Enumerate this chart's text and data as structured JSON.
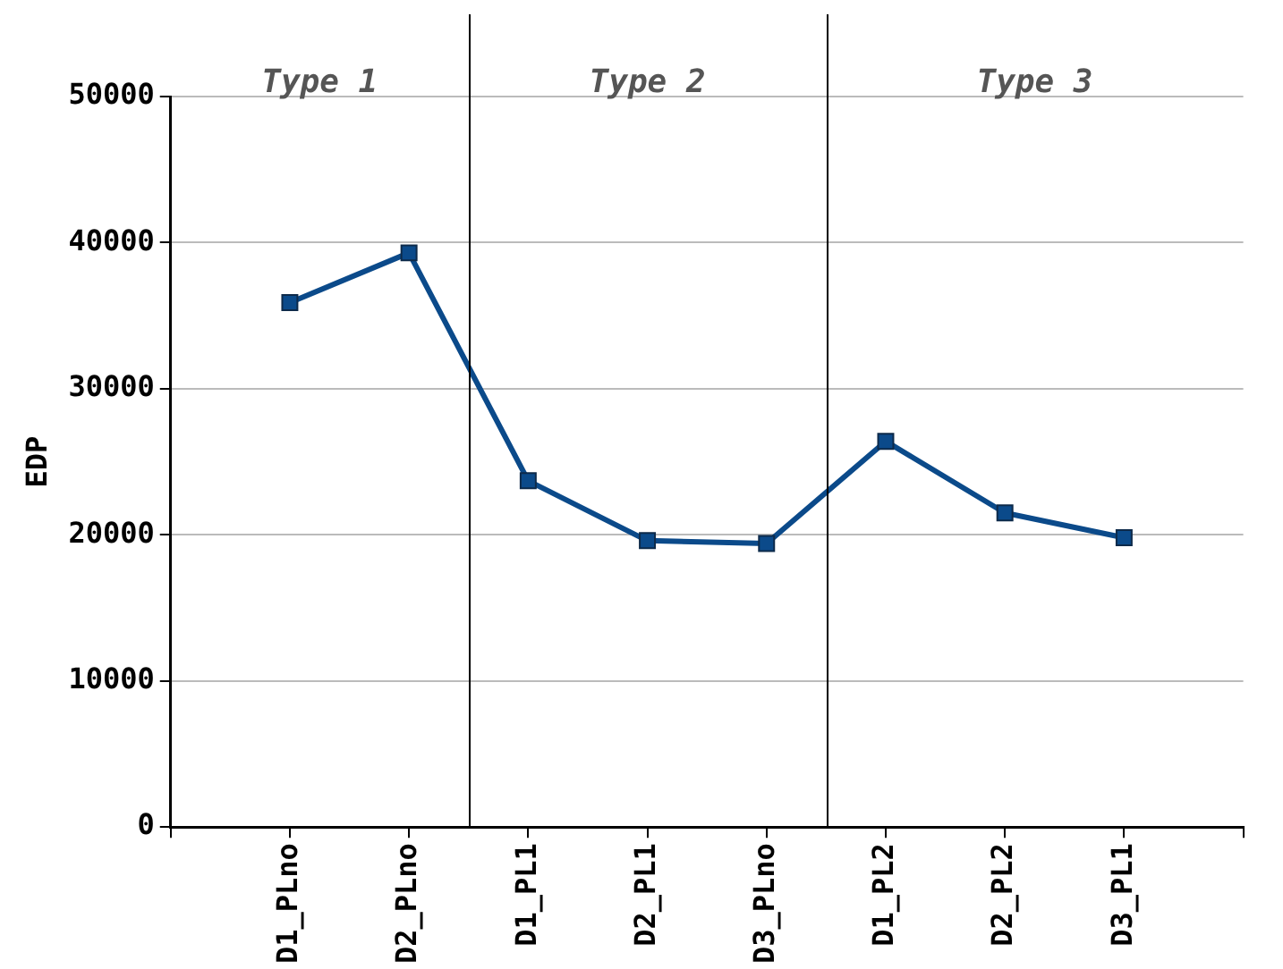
{
  "chart_data": {
    "type": "line",
    "ylabel": "EDP",
    "categories": [
      null,
      "D1_PLno",
      "D2_PLno",
      "D1_PL1",
      "D2_PL1",
      "D3_PLno",
      "D1_PL2",
      "D2_PL2",
      "D3_PL1",
      null
    ],
    "series": [
      {
        "color": "#0b4a8a",
        "values": [
          null,
          35900,
          39300,
          23700,
          19600,
          19400,
          26400,
          21500,
          19800,
          null
        ]
      }
    ],
    "ylim": [
      0,
      50000
    ],
    "yticks": [
      0,
      10000,
      20000,
      30000,
      40000,
      50000
    ],
    "grid": "y",
    "marker": "square",
    "line_style": "solid",
    "annotations": [
      "Type 1",
      "Type 2",
      "Type 3"
    ]
  }
}
